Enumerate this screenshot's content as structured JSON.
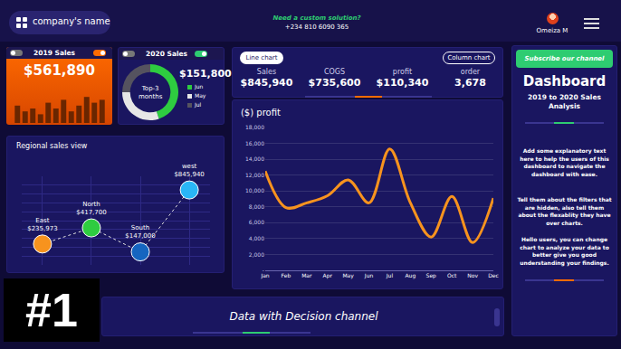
{
  "header": {
    "company": "company's name",
    "cta": "Need a custom solution?",
    "phone": "+234 810 6090 365",
    "user": "Omeiza M"
  },
  "cards": {
    "sales_2019": {
      "title": "2019 Sales",
      "value": "$561,890"
    },
    "sales_2020": {
      "title": "2020 Sales",
      "value": "$151,800"
    }
  },
  "buttons": [
    "Line chart",
    "Column chart"
  ],
  "kpis": [
    {
      "label": "Sales",
      "value": "$845,940"
    },
    {
      "label": "COGS",
      "value": "$735,600"
    },
    {
      "label": "profit",
      "value": "$110,340"
    },
    {
      "label": "order",
      "value": "3,678"
    }
  ],
  "sidebar": {
    "button": "Subscribe our channel",
    "title": "Dashboard",
    "subtitle": "2019 to 2020 Sales Analysis",
    "paragraphs": [
      "Add some explanatory text here to help the users of this dashboard to navigate the dashboard with ease.",
      "Tell them about the filters that are hidden, also tell them about the flexablity they have over charts.",
      "Hello users, you can change chart to analyze your data to better give you good understanding your findings."
    ]
  },
  "footer": {
    "badge": "#1",
    "text": "Data with Decision channel"
  },
  "chart_data": [
    {
      "type": "bar",
      "categories": [
        null,
        null,
        null,
        null,
        null,
        null,
        null,
        null,
        null,
        null,
        null,
        null
      ],
      "values": [
        6,
        4,
        5,
        3,
        7,
        5,
        8,
        4,
        6,
        9,
        7,
        8
      ],
      "color": "#6a2600",
      "ylim": [
        0,
        10
      ],
      "tick_labels": false,
      "grid": false
    },
    {
      "type": "donut",
      "title": "Top-3 months",
      "categories": [
        "Jun",
        "May",
        "Jul"
      ],
      "values": [
        45,
        30,
        25
      ],
      "colors": [
        "#2ecc40",
        "#e6e6e6",
        "#55535f"
      ],
      "legend": "right"
    },
    {
      "type": "scatter",
      "title": "Regional sales view",
      "categories": [
        "East",
        "North",
        "South",
        "west"
      ],
      "values": [
        235973,
        417700,
        147000,
        845940
      ],
      "value_labels": [
        "$235,973",
        "$417,700",
        "$147,000",
        "$845,940"
      ],
      "colors": [
        "#f7931e",
        "#2ecc40",
        "#1565c0",
        "#29b6f6"
      ],
      "line_style": "dotted",
      "data_labels": true,
      "ylim": [
        0,
        1000000
      ],
      "yticks": [
        0,
        100000,
        200000,
        300000,
        400000,
        500000,
        600000,
        700000,
        800000,
        900000,
        1000000
      ],
      "grid": true,
      "tick_labels": false
    },
    {
      "type": "line",
      "title": "($) profit",
      "categories": [
        "Jan",
        "Feb",
        "Mar",
        "Apr",
        "May",
        "Jun",
        "Jul",
        "Aug",
        "Sep",
        "Oct",
        "Nov",
        "Dec"
      ],
      "values": [
        12500,
        7900,
        8500,
        9400,
        11400,
        8500,
        15300,
        8500,
        4200,
        9300,
        3500,
        9100
      ],
      "color": "#f7931e",
      "line_style": "smooth",
      "ylim": [
        0,
        18000
      ],
      "yticks": [
        {
          "value": 0,
          "label": "-"
        },
        {
          "value": 2000,
          "label": "2,000"
        },
        {
          "value": 4000,
          "label": "4,000"
        },
        {
          "value": 6000,
          "label": "6,000"
        },
        {
          "value": 8000,
          "label": "8,000"
        },
        {
          "value": 10000,
          "label": "10,000"
        },
        {
          "value": 12000,
          "label": "12,000"
        },
        {
          "value": 14000,
          "label": "14,000"
        },
        {
          "value": 16000,
          "label": "16,000"
        },
        {
          "value": 18000,
          "label": "18,000"
        }
      ],
      "grid": true
    }
  ]
}
